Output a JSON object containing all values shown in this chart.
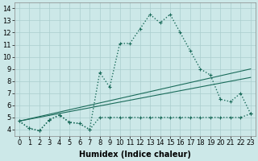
{
  "xlabel": "Humidex (Indice chaleur)",
  "background_color": "#cce8e8",
  "grid_color": "#aacece",
  "line_color": "#1a6b5a",
  "xlim": [
    -0.5,
    23.5
  ],
  "ylim": [
    3.5,
    14.5
  ],
  "xtick_labels": [
    "0",
    "1",
    "2",
    "3",
    "4",
    "5",
    "6",
    "7",
    "8",
    "9",
    "10",
    "11",
    "12",
    "13",
    "14",
    "15",
    "16",
    "17",
    "18",
    "19",
    "20",
    "21",
    "22",
    "23"
  ],
  "ytick_labels": [
    "4",
    "5",
    "6",
    "7",
    "8",
    "9",
    "10",
    "11",
    "12",
    "13",
    "14"
  ],
  "yticks": [
    4,
    5,
    6,
    7,
    8,
    9,
    10,
    11,
    12,
    13,
    14
  ],
  "series": [
    {
      "x": [
        0,
        1,
        2,
        3,
        4,
        5,
        6,
        7,
        8,
        9,
        10,
        11,
        12,
        13,
        14,
        15,
        16,
        17,
        18,
        19,
        20,
        21,
        22,
        23
      ],
      "y": [
        4.7,
        4.1,
        3.9,
        4.8,
        5.2,
        4.6,
        4.5,
        4.0,
        8.7,
        7.5,
        11.1,
        11.1,
        12.3,
        13.5,
        12.8,
        13.5,
        12.0,
        10.5,
        9.0,
        8.5,
        6.5,
        6.3,
        7.0,
        5.3
      ],
      "linestyle": "dotted",
      "marker": true,
      "linewidth": 1.0
    },
    {
      "x": [
        0,
        1,
        2,
        3,
        4,
        5,
        6,
        7,
        8,
        9,
        10,
        11,
        12,
        13,
        14,
        15,
        16,
        17,
        18,
        19,
        20,
        21,
        22,
        23
      ],
      "y": [
        4.7,
        4.1,
        3.9,
        4.8,
        5.2,
        4.6,
        4.5,
        4.0,
        5.0,
        5.0,
        5.0,
        5.0,
        5.0,
        5.0,
        5.0,
        5.0,
        5.0,
        5.0,
        5.0,
        5.0,
        5.0,
        5.0,
        5.0,
        5.3
      ],
      "linestyle": "dotted",
      "marker": true,
      "linewidth": 1.0
    },
    {
      "x": [
        0,
        23
      ],
      "y": [
        4.7,
        9.0
      ],
      "linestyle": "solid",
      "marker": false,
      "linewidth": 0.8
    },
    {
      "x": [
        0,
        23
      ],
      "y": [
        4.7,
        8.3
      ],
      "linestyle": "solid",
      "marker": false,
      "linewidth": 0.8
    }
  ],
  "xlabel_fontsize": 7,
  "tick_fontsize": 6
}
